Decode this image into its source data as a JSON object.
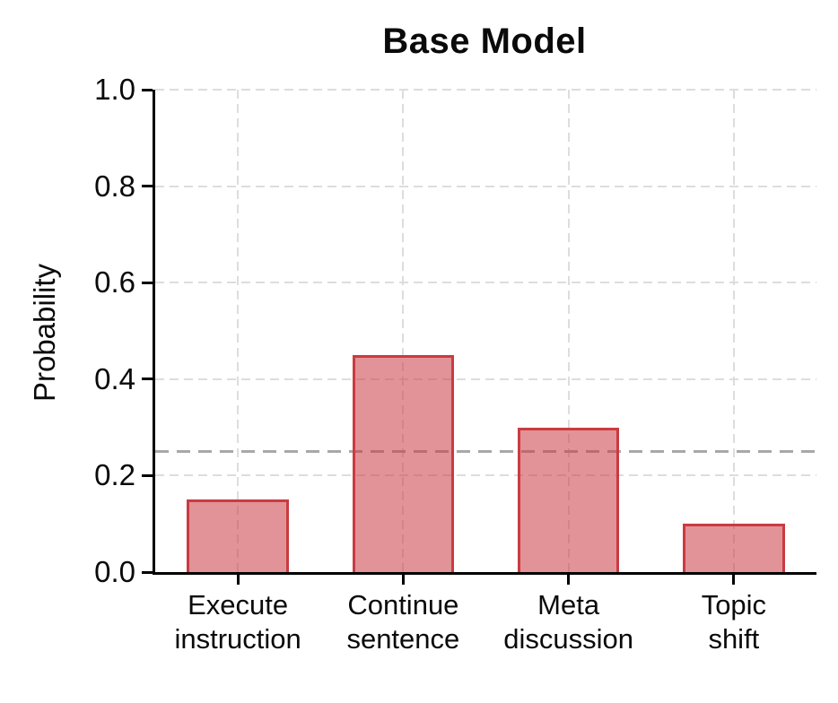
{
  "chart_data": {
    "type": "bar",
    "title": "Base Model",
    "ylabel": "Probability",
    "xlabel": "",
    "categories": [
      "Execute\ninstruction",
      "Continue\nsentence",
      "Meta\ndiscussion",
      "Topic\nshift"
    ],
    "values": [
      0.15,
      0.45,
      0.3,
      0.1
    ],
    "ylim": [
      0.0,
      1.0
    ],
    "yticks": [
      0.0,
      0.2,
      0.4,
      0.6,
      0.8,
      1.0
    ],
    "ytick_labels": [
      "0.0",
      "0.2",
      "0.4",
      "0.6",
      "0.8",
      "1.0"
    ],
    "grid": true,
    "legend": false,
    "reference_line_y": 0.25,
    "bar_width_fraction": 0.615,
    "colors": {
      "bar_fill": "rgba(201,59,65,0.55)",
      "bar_edge": "#CA3B41",
      "gridline": "#DDDDDD",
      "reference_line": "#A8A8A8",
      "axis": "#000000",
      "text": "#0A0A0A",
      "background": "#FFFFFF"
    }
  }
}
